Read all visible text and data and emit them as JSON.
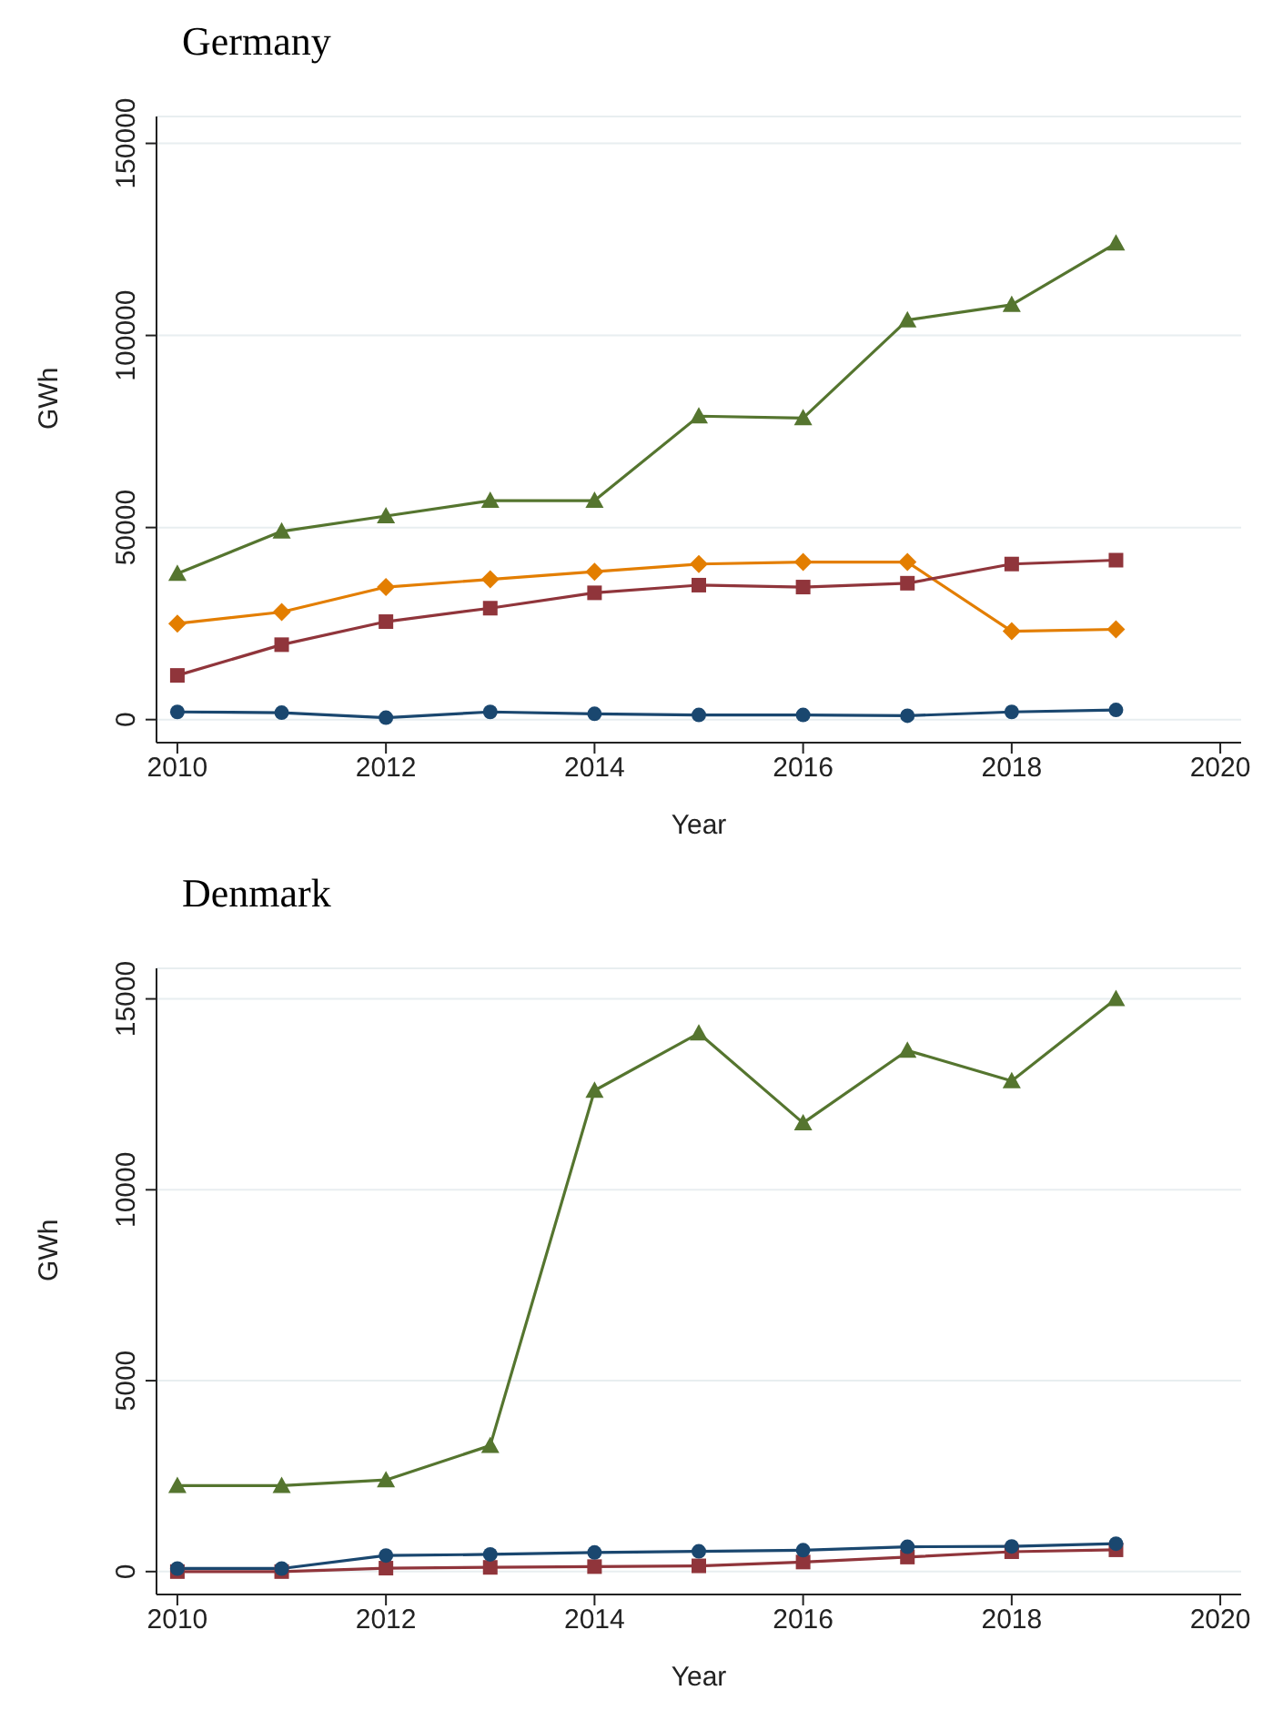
{
  "chart_data": [
    {
      "type": "line",
      "title": "Germany",
      "xlabel": "Year",
      "ylabel": "GWh",
      "x": [
        2010,
        2011,
        2012,
        2013,
        2014,
        2015,
        2016,
        2017,
        2018,
        2019
      ],
      "xlim": [
        2009.8,
        2020.2
      ],
      "xticks": [
        2010,
        2012,
        2014,
        2016,
        2018,
        2020
      ],
      "ylim": [
        -6000,
        157000
      ],
      "yticks": [
        0,
        50000,
        100000,
        150000
      ],
      "grid": "y",
      "legend": false,
      "series": [
        {
          "color": "#55752f",
          "marker": "triangle",
          "values": [
            38000,
            49000,
            53000,
            57000,
            57000,
            79000,
            78500,
            104000,
            108000,
            124000
          ]
        },
        {
          "color": "#e37e00",
          "marker": "diamond",
          "values": [
            25000,
            28000,
            34500,
            36500,
            38500,
            40500,
            41000,
            41000,
            23000,
            23500
          ]
        },
        {
          "color": "#90353b",
          "marker": "square",
          "values": [
            11500,
            19500,
            25500,
            29000,
            33000,
            35000,
            34500,
            35500,
            40500,
            41500
          ]
        },
        {
          "color": "#1a476f",
          "marker": "circle",
          "values": [
            2000,
            1800,
            500,
            2000,
            1500,
            1200,
            1200,
            1000,
            2000,
            2500
          ]
        }
      ]
    },
    {
      "type": "line",
      "title": "Denmark",
      "xlabel": "Year",
      "ylabel": "GWh",
      "x": [
        2010,
        2011,
        2012,
        2013,
        2014,
        2015,
        2016,
        2017,
        2018,
        2019
      ],
      "xlim": [
        2009.8,
        2020.2
      ],
      "xticks": [
        2010,
        2012,
        2014,
        2016,
        2018,
        2020
      ],
      "ylim": [
        -600,
        15800
      ],
      "yticks": [
        0,
        5000,
        10000,
        15000
      ],
      "grid": "y",
      "legend": false,
      "series": [
        {
          "color": "#55752f",
          "marker": "triangle",
          "values": [
            2250,
            2250,
            2400,
            3300,
            12600,
            14100,
            11750,
            13650,
            12850,
            15000
          ]
        },
        {
          "color": "#90353b",
          "marker": "square",
          "values": [
            0,
            0,
            90,
            110,
            130,
            150,
            250,
            380,
            520,
            570
          ]
        },
        {
          "color": "#1a476f",
          "marker": "circle",
          "values": [
            80,
            80,
            420,
            450,
            500,
            530,
            560,
            650,
            660,
            730
          ]
        }
      ]
    }
  ]
}
